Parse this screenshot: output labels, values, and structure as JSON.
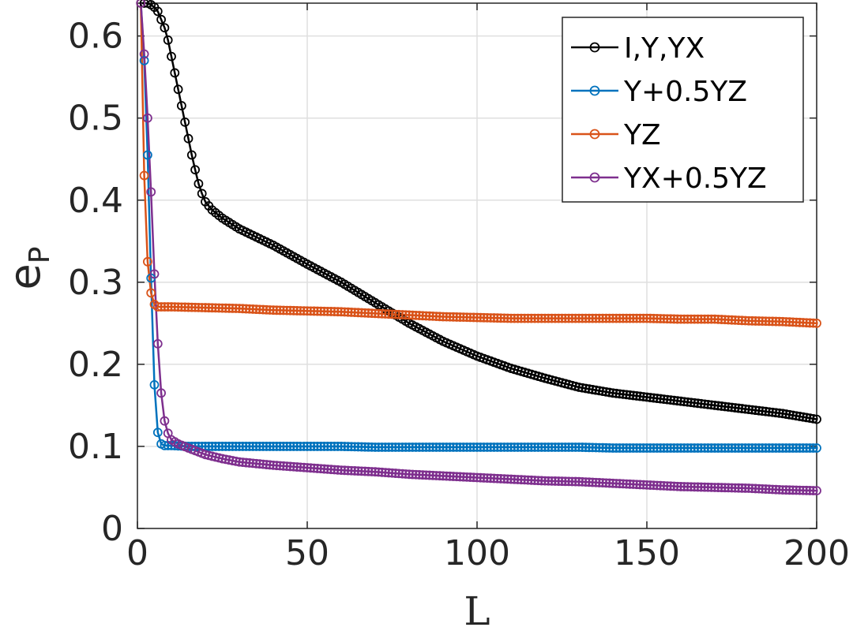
{
  "chart_data": {
    "type": "line",
    "xlabel": "L",
    "ylabel": {
      "main": "e",
      "sub": "P"
    },
    "xlim": [
      0,
      200
    ],
    "ylim": [
      0,
      0.64
    ],
    "xticks": [
      0,
      50,
      100,
      150,
      200
    ],
    "yticks": [
      0,
      0.1,
      0.2,
      0.3,
      0.4,
      0.5,
      0.6
    ],
    "xtick_labels": [
      "0",
      "50",
      "100",
      "150",
      "200"
    ],
    "ytick_labels": [
      "0",
      "0.1",
      "0.2",
      "0.3",
      "0.4",
      "0.5",
      "0.6"
    ],
    "grid": true,
    "legend_position": "top-right",
    "marker": "circle",
    "series": [
      {
        "name": "I,Y,YX",
        "color": "#000000",
        "points": [
          [
            1,
            0.64
          ],
          [
            2,
            0.64
          ],
          [
            3,
            0.64
          ],
          [
            4,
            0.638
          ],
          [
            5,
            0.635
          ],
          [
            6,
            0.63
          ],
          [
            7,
            0.62
          ],
          [
            8,
            0.61
          ],
          [
            9,
            0.595
          ],
          [
            10,
            0.575
          ],
          [
            11,
            0.555
          ],
          [
            12,
            0.535
          ],
          [
            13,
            0.515
          ],
          [
            14,
            0.495
          ],
          [
            15,
            0.475
          ],
          [
            16,
            0.455
          ],
          [
            17,
            0.437
          ],
          [
            18,
            0.42
          ],
          [
            19,
            0.408
          ],
          [
            20,
            0.398
          ],
          [
            22,
            0.388
          ],
          [
            25,
            0.378
          ],
          [
            30,
            0.365
          ],
          [
            40,
            0.345
          ],
          [
            50,
            0.322
          ],
          [
            60,
            0.3
          ],
          [
            70,
            0.275
          ],
          [
            80,
            0.25
          ],
          [
            90,
            0.228
          ],
          [
            100,
            0.21
          ],
          [
            110,
            0.195
          ],
          [
            120,
            0.183
          ],
          [
            130,
            0.172
          ],
          [
            140,
            0.165
          ],
          [
            150,
            0.16
          ],
          [
            160,
            0.155
          ],
          [
            170,
            0.15
          ],
          [
            180,
            0.145
          ],
          [
            190,
            0.14
          ],
          [
            200,
            0.133
          ]
        ]
      },
      {
        "name": "Y+0.5YZ",
        "color": "#0072BD",
        "points": [
          [
            1,
            0.64
          ],
          [
            2,
            0.57
          ],
          [
            3,
            0.455
          ],
          [
            4,
            0.305
          ],
          [
            5,
            0.175
          ],
          [
            6,
            0.117
          ],
          [
            7,
            0.103
          ],
          [
            8,
            0.101
          ],
          [
            10,
            0.101
          ],
          [
            15,
            0.1
          ],
          [
            20,
            0.1
          ],
          [
            30,
            0.1
          ],
          [
            40,
            0.1
          ],
          [
            50,
            0.1
          ],
          [
            60,
            0.1
          ],
          [
            70,
            0.099
          ],
          [
            80,
            0.099
          ],
          [
            90,
            0.099
          ],
          [
            100,
            0.099
          ],
          [
            110,
            0.099
          ],
          [
            120,
            0.099
          ],
          [
            130,
            0.099
          ],
          [
            140,
            0.098
          ],
          [
            150,
            0.098
          ],
          [
            160,
            0.098
          ],
          [
            170,
            0.098
          ],
          [
            180,
            0.098
          ],
          [
            190,
            0.098
          ],
          [
            200,
            0.098
          ]
        ]
      },
      {
        "name": "YZ",
        "color": "#D95319",
        "points": [
          [
            1,
            0.64
          ],
          [
            2,
            0.43
          ],
          [
            3,
            0.325
          ],
          [
            4,
            0.287
          ],
          [
            5,
            0.273
          ],
          [
            6,
            0.27
          ],
          [
            8,
            0.27
          ],
          [
            10,
            0.27
          ],
          [
            20,
            0.269
          ],
          [
            30,
            0.268
          ],
          [
            40,
            0.266
          ],
          [
            50,
            0.265
          ],
          [
            60,
            0.264
          ],
          [
            70,
            0.262
          ],
          [
            80,
            0.26
          ],
          [
            90,
            0.258
          ],
          [
            100,
            0.257
          ],
          [
            110,
            0.256
          ],
          [
            120,
            0.256
          ],
          [
            130,
            0.256
          ],
          [
            140,
            0.256
          ],
          [
            150,
            0.256
          ],
          [
            160,
            0.255
          ],
          [
            170,
            0.255
          ],
          [
            180,
            0.253
          ],
          [
            190,
            0.252
          ],
          [
            200,
            0.25
          ]
        ]
      },
      {
        "name": "YX+0.5YZ",
        "color": "#7E2F8E",
        "points": [
          [
            1,
            0.64
          ],
          [
            2,
            0.578
          ],
          [
            3,
            0.5
          ],
          [
            4,
            0.41
          ],
          [
            5,
            0.31
          ],
          [
            6,
            0.225
          ],
          [
            7,
            0.165
          ],
          [
            8,
            0.131
          ],
          [
            9,
            0.116
          ],
          [
            10,
            0.108
          ],
          [
            12,
            0.103
          ],
          [
            15,
            0.098
          ],
          [
            20,
            0.09
          ],
          [
            25,
            0.085
          ],
          [
            30,
            0.081
          ],
          [
            40,
            0.077
          ],
          [
            50,
            0.074
          ],
          [
            60,
            0.071
          ],
          [
            70,
            0.069
          ],
          [
            80,
            0.066
          ],
          [
            90,
            0.064
          ],
          [
            100,
            0.062
          ],
          [
            110,
            0.06
          ],
          [
            120,
            0.058
          ],
          [
            130,
            0.057
          ],
          [
            140,
            0.055
          ],
          [
            150,
            0.053
          ],
          [
            160,
            0.051
          ],
          [
            170,
            0.05
          ],
          [
            180,
            0.049
          ],
          [
            190,
            0.047
          ],
          [
            200,
            0.046
          ]
        ]
      }
    ]
  }
}
